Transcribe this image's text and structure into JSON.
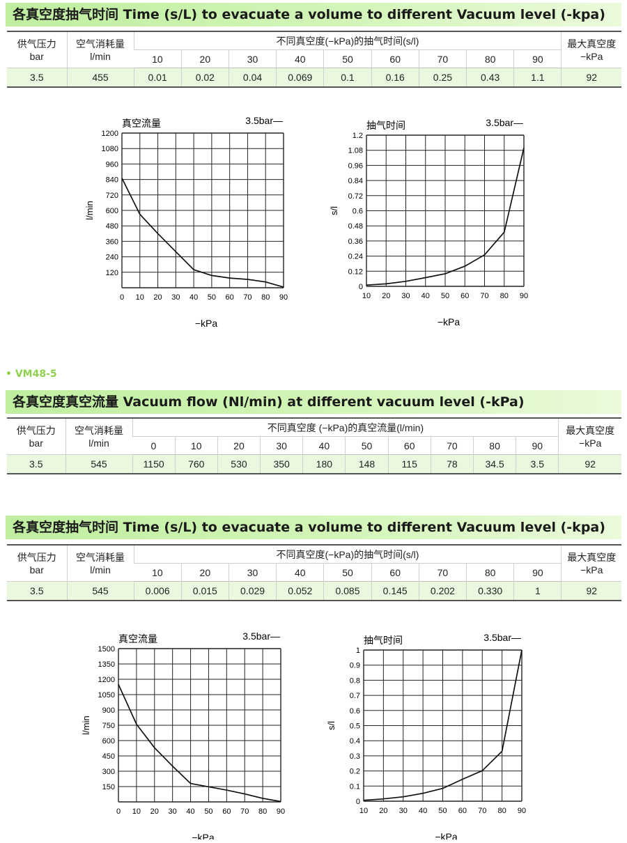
{
  "section1": {
    "banner_title": "各真空度抽气时间 Time (s/L) to evacuate a volume to different Vacuum level (-kpa)",
    "table": {
      "col_pressure": [
        "供气压力",
        "bar"
      ],
      "col_air": [
        "空气消耗量",
        "l/min"
      ],
      "col_group": "不同真空度(−kPa)的抽气时间(s/l)",
      "col_max": [
        "最大真空度",
        "−kPa"
      ],
      "levels": [
        "10",
        "20",
        "30",
        "40",
        "50",
        "60",
        "70",
        "80",
        "90"
      ],
      "row": {
        "pressure": "3.5",
        "air": "455",
        "values": [
          "0.01",
          "0.02",
          "0.04",
          "0.069",
          "0.1",
          "0.16",
          "0.25",
          "0.43",
          "1.1"
        ],
        "max": "92"
      }
    }
  },
  "charts1": {
    "flow": {
      "label": "真空流量",
      "legend": "3.5bar—",
      "ylabel": "l/min",
      "xlabel": "−kPa",
      "xticks": [
        "0",
        "10",
        "20",
        "30",
        "40",
        "50",
        "60",
        "70",
        "80",
        "90"
      ],
      "yticks": [
        "120",
        "240",
        "360",
        "480",
        "600",
        "720",
        "840",
        "960",
        "1080",
        "1200"
      ]
    },
    "time": {
      "label": "抽气时间",
      "legend": "3.5bar—",
      "ylabel": "s/l",
      "xlabel": "−kPa",
      "xticks": [
        "10",
        "20",
        "30",
        "40",
        "50",
        "60",
        "70",
        "80",
        "90"
      ],
      "yticks": [
        "0",
        "0.12",
        "0.24",
        "0.36",
        "0.48",
        "0.6",
        "0.72",
        "0.84",
        "0.96",
        "1.08",
        "1.2"
      ]
    }
  },
  "model2": "• VM48-5",
  "section2": {
    "banner_title": "各真空度真空流量 Vacuum flow (Nl/min) at different vacuum level (-kPa)",
    "table": {
      "col_pressure": [
        "供气压力",
        "bar"
      ],
      "col_air": [
        "空气消耗量",
        "l/min"
      ],
      "col_group": "不同真空度 (−kPa)的真空流量(l/min)",
      "col_max": [
        "最大真空度",
        "−kPa"
      ],
      "levels": [
        "0",
        "10",
        "20",
        "30",
        "40",
        "50",
        "60",
        "70",
        "80",
        "90"
      ],
      "row": {
        "pressure": "3.5",
        "air": "545",
        "values": [
          "1150",
          "760",
          "530",
          "350",
          "180",
          "148",
          "115",
          "78",
          "34.5",
          "3.5"
        ],
        "max": "92"
      }
    }
  },
  "section3": {
    "banner_title": "各真空度抽气时间 Time (s/L) to evacuate a volume to different Vacuum level (-kpa)",
    "table": {
      "col_pressure": [
        "供气压力",
        "bar"
      ],
      "col_air": [
        "空气消耗量",
        "l/min"
      ],
      "col_group": "不同真空度(−kPa)的抽气时间(s/l)",
      "col_max": [
        "最大真空度",
        "−kPa"
      ],
      "levels": [
        "10",
        "20",
        "30",
        "40",
        "50",
        "60",
        "70",
        "80",
        "90"
      ],
      "row": {
        "pressure": "3.5",
        "air": "545",
        "values": [
          "0.006",
          "0.015",
          "0.029",
          "0.052",
          "0.085",
          "0.145",
          "0.202",
          "0.330",
          "1"
        ],
        "max": "92"
      }
    }
  },
  "charts3": {
    "flow": {
      "label": "真空流量",
      "legend": "3.5bar—",
      "ylabel": "l/min",
      "xlabel": "−kPa",
      "xticks": [
        "0",
        "10",
        "20",
        "30",
        "40",
        "50",
        "60",
        "70",
        "80",
        "90"
      ],
      "yticks": [
        "150",
        "300",
        "450",
        "600",
        "750",
        "900",
        "1050",
        "1200",
        "1350",
        "1500"
      ]
    },
    "time": {
      "label": "抽气时间",
      "legend": "3.5bar—",
      "ylabel": "s/l",
      "xlabel": "−kPa",
      "xticks": [
        "10",
        "20",
        "30",
        "40",
        "50",
        "60",
        "70",
        "80",
        "90"
      ],
      "yticks": [
        "0",
        "0.1",
        "0.2",
        "0.3",
        "0.4",
        "0.5",
        "0.6",
        "0.7",
        "0.8",
        "0.9",
        "1"
      ]
    }
  },
  "chart_data": [
    {
      "type": "line",
      "label": "真空流量",
      "legend": "3.5bar—",
      "xlabel": "−kPa",
      "ylabel": "l/min",
      "xlim": [
        0,
        90
      ],
      "ylim": [
        0,
        1200
      ],
      "x": [
        0,
        10,
        20,
        30,
        40,
        50,
        60,
        70,
        80,
        90
      ],
      "series": [
        {
          "name": "3.5bar",
          "values": [
            850,
            570,
            420,
            280,
            140,
            95,
            75,
            65,
            45,
            5
          ]
        }
      ]
    },
    {
      "type": "line",
      "label": "抽气时间",
      "legend": "3.5bar—",
      "xlabel": "−kPa",
      "ylabel": "s/l",
      "xlim": [
        10,
        90
      ],
      "ylim": [
        0,
        1.2
      ],
      "x": [
        10,
        20,
        30,
        40,
        50,
        60,
        70,
        80,
        90
      ],
      "series": [
        {
          "name": "3.5bar",
          "values": [
            0.01,
            0.02,
            0.04,
            0.069,
            0.1,
            0.16,
            0.25,
            0.43,
            1.1
          ]
        }
      ]
    },
    {
      "type": "line",
      "label": "真空流量",
      "legend": "3.5bar—",
      "xlabel": "−kPa",
      "ylabel": "l/min",
      "xlim": [
        0,
        90
      ],
      "ylim": [
        0,
        1500
      ],
      "x": [
        0,
        10,
        20,
        30,
        40,
        50,
        60,
        70,
        80,
        90
      ],
      "series": [
        {
          "name": "3.5bar",
          "values": [
            1150,
            760,
            530,
            350,
            180,
            148,
            115,
            78,
            34.5,
            3.5
          ]
        }
      ]
    },
    {
      "type": "line",
      "label": "抽气时间",
      "legend": "3.5bar—",
      "xlabel": "−kPa",
      "ylabel": "s/l",
      "xlim": [
        10,
        90
      ],
      "ylim": [
        0,
        1
      ],
      "x": [
        10,
        20,
        30,
        40,
        50,
        60,
        70,
        80,
        90
      ],
      "series": [
        {
          "name": "3.5bar",
          "values": [
            0.006,
            0.015,
            0.029,
            0.052,
            0.085,
            0.145,
            0.202,
            0.33,
            1
          ]
        }
      ]
    }
  ]
}
